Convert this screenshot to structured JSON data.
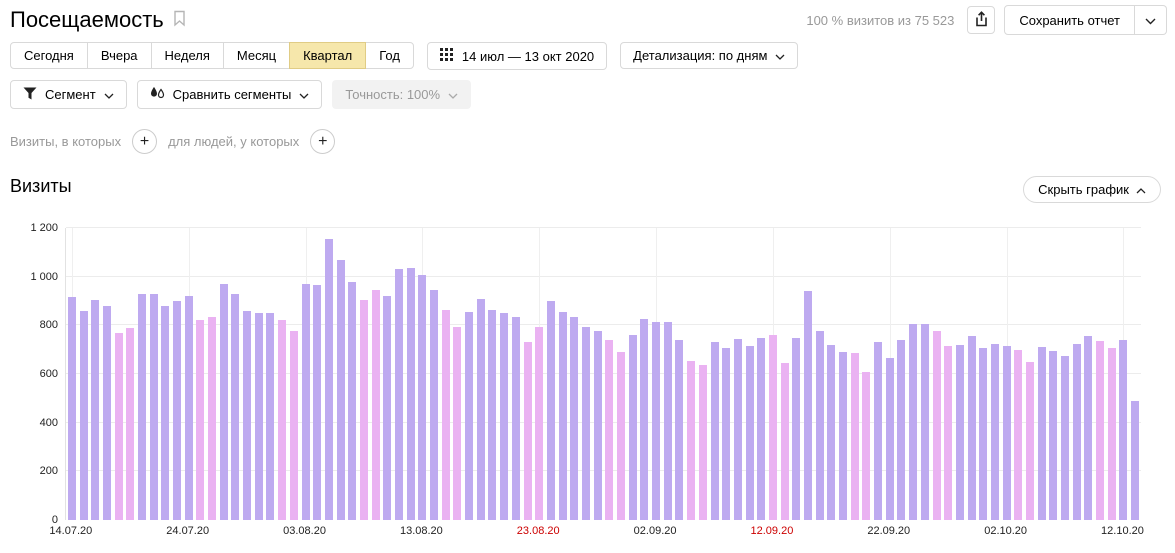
{
  "header": {
    "title": "Посещаемость",
    "visits_summary": "100 % визитов из 75 523",
    "save_report": "Сохранить отчет"
  },
  "period_tabs": {
    "items": [
      {
        "label": "Сегодня",
        "selected": false
      },
      {
        "label": "Вчера",
        "selected": false
      },
      {
        "label": "Неделя",
        "selected": false
      },
      {
        "label": "Месяц",
        "selected": false
      },
      {
        "label": "Квартал",
        "selected": true
      },
      {
        "label": "Год",
        "selected": false
      }
    ]
  },
  "toolbar": {
    "date_range": "14 июл — 13 окт 2020",
    "detail": "Детализация: по дням"
  },
  "segments": {
    "segment": "Сегмент",
    "compare": "Сравнить сегменты",
    "accuracy": "Точность: 100%"
  },
  "conditions": {
    "visits": "Визиты, в которых",
    "people": "для людей, у которых"
  },
  "section": {
    "title": "Визиты",
    "hide_chart": "Скрыть график"
  },
  "chart_data": {
    "type": "bar",
    "title": "Визиты",
    "ylabel": "",
    "xlabel": "",
    "ylim": [
      0,
      1200
    ],
    "yticks": [
      0,
      200,
      400,
      600,
      800,
      1000,
      1200
    ],
    "ytick_labels": [
      "0",
      "200",
      "400",
      "600",
      "800",
      "1 000",
      "1 200"
    ],
    "grid": true,
    "legend": "none",
    "colors": {
      "weekday": "#beaaf0",
      "weekend": "#eab2f2"
    },
    "x_ticks": [
      {
        "index": 0,
        "label": "14.07.20",
        "red": false
      },
      {
        "index": 10,
        "label": "24.07.20",
        "red": false
      },
      {
        "index": 20,
        "label": "03.08.20",
        "red": false
      },
      {
        "index": 30,
        "label": "13.08.20",
        "red": false
      },
      {
        "index": 40,
        "label": "23.08.20",
        "red": true
      },
      {
        "index": 50,
        "label": "02.09.20",
        "red": false
      },
      {
        "index": 60,
        "label": "12.09.20",
        "red": true
      },
      {
        "index": 70,
        "label": "22.09.20",
        "red": false
      },
      {
        "index": 80,
        "label": "02.10.20",
        "red": false
      },
      {
        "index": 90,
        "label": "12.10.20",
        "red": false
      }
    ],
    "categories": [
      "14.07.20",
      "15.07.20",
      "16.07.20",
      "17.07.20",
      "18.07.20",
      "19.07.20",
      "20.07.20",
      "21.07.20",
      "22.07.20",
      "23.07.20",
      "24.07.20",
      "25.07.20",
      "26.07.20",
      "27.07.20",
      "28.07.20",
      "29.07.20",
      "30.07.20",
      "31.07.20",
      "01.08.20",
      "02.08.20",
      "03.08.20",
      "04.08.20",
      "05.08.20",
      "06.08.20",
      "07.08.20",
      "08.08.20",
      "09.08.20",
      "10.08.20",
      "11.08.20",
      "12.08.20",
      "13.08.20",
      "14.08.20",
      "15.08.20",
      "16.08.20",
      "17.08.20",
      "18.08.20",
      "19.08.20",
      "20.08.20",
      "21.08.20",
      "22.08.20",
      "23.08.20",
      "24.08.20",
      "25.08.20",
      "26.08.20",
      "27.08.20",
      "28.08.20",
      "29.08.20",
      "30.08.20",
      "31.08.20",
      "01.09.20",
      "02.09.20",
      "03.09.20",
      "04.09.20",
      "05.09.20",
      "06.09.20",
      "07.09.20",
      "08.09.20",
      "09.09.20",
      "10.09.20",
      "11.09.20",
      "12.09.20",
      "13.09.20",
      "14.09.20",
      "15.09.20",
      "16.09.20",
      "17.09.20",
      "18.09.20",
      "19.09.20",
      "20.09.20",
      "21.09.20",
      "22.09.20",
      "23.09.20",
      "24.09.20",
      "25.09.20",
      "26.09.20",
      "27.09.20",
      "28.09.20",
      "29.09.20",
      "30.09.20",
      "01.10.20",
      "02.10.20",
      "03.10.20",
      "04.10.20",
      "05.10.20",
      "06.10.20",
      "07.10.20",
      "08.10.20",
      "09.10.20",
      "10.10.20",
      "11.10.20",
      "12.10.20",
      "13.10.20"
    ],
    "values": [
      915,
      860,
      905,
      880,
      770,
      790,
      930,
      930,
      880,
      900,
      920,
      820,
      835,
      970,
      930,
      860,
      850,
      850,
      820,
      775,
      970,
      965,
      1155,
      1070,
      980,
      905,
      945,
      920,
      1030,
      1035,
      1005,
      945,
      865,
      795,
      855,
      910,
      865,
      850,
      835,
      730,
      795,
      900,
      855,
      835,
      795,
      775,
      740,
      690,
      760,
      825,
      815,
      815,
      740,
      655,
      635,
      730,
      705,
      745,
      715,
      750,
      760,
      645,
      750,
      940,
      775,
      720,
      690,
      685,
      610,
      730,
      665,
      740,
      805,
      805,
      775,
      715,
      720,
      755,
      705,
      725,
      715,
      700,
      650,
      710,
      695,
      675,
      725,
      755,
      735,
      705,
      740,
      490
    ],
    "weekend": [
      0,
      0,
      0,
      0,
      1,
      1,
      0,
      0,
      0,
      0,
      0,
      1,
      1,
      0,
      0,
      0,
      0,
      0,
      1,
      1,
      0,
      0,
      0,
      0,
      0,
      1,
      1,
      0,
      0,
      0,
      0,
      0,
      1,
      1,
      0,
      0,
      0,
      0,
      0,
      1,
      1,
      0,
      0,
      0,
      0,
      0,
      1,
      1,
      0,
      0,
      0,
      0,
      0,
      1,
      1,
      0,
      0,
      0,
      0,
      0,
      1,
      1,
      0,
      0,
      0,
      0,
      0,
      1,
      1,
      0,
      0,
      0,
      0,
      0,
      1,
      1,
      0,
      0,
      0,
      0,
      0,
      1,
      1,
      0,
      0,
      0,
      0,
      0,
      1,
      1,
      0,
      0
    ]
  }
}
